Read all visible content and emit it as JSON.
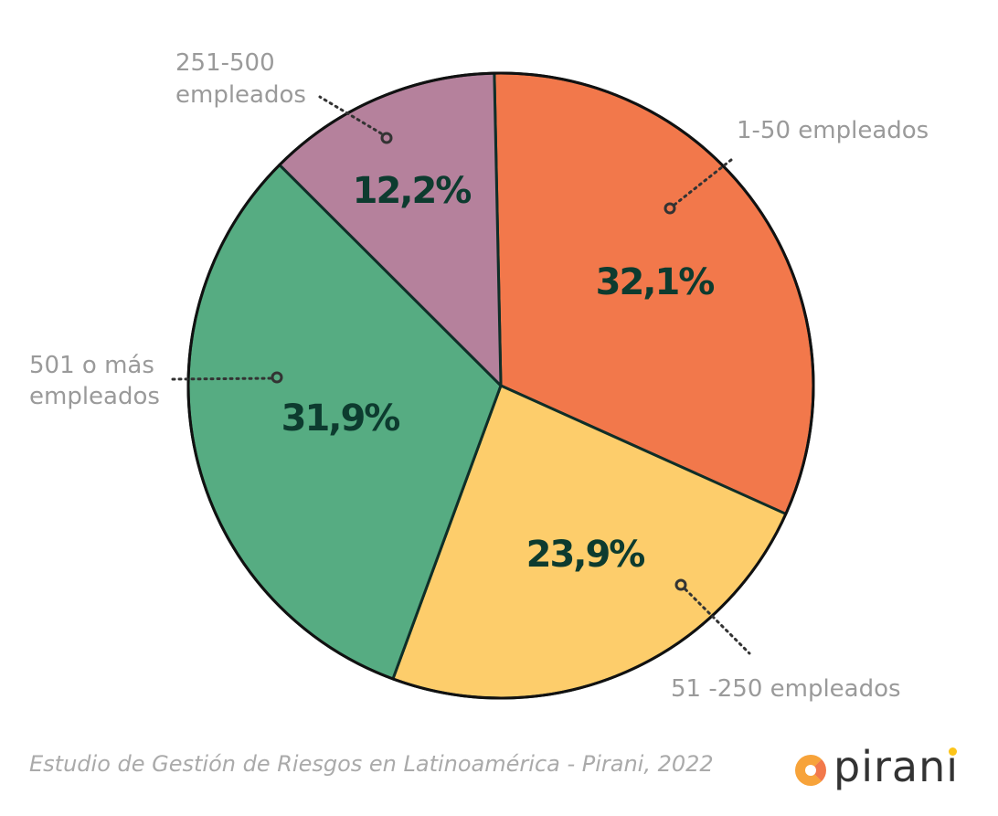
{
  "chart_data": {
    "type": "pie",
    "title": "",
    "slices": [
      {
        "label": "1-50 empleados",
        "value": 32.1,
        "display": "32,1%",
        "color": "#F2784B"
      },
      {
        "label": "51 -250 empleados",
        "value": 23.9,
        "display": "23,9%",
        "color": "#FDCD6B"
      },
      {
        "label": "501 o más empleados",
        "value": 31.9,
        "display": "31,9%",
        "color": "#56AC82"
      },
      {
        "label": "251-500 empleados",
        "value": 12.2,
        "display": "12,2%",
        "color": "#B5819C"
      }
    ],
    "outline_color": "#0F2E28"
  },
  "labels": {
    "l1": [
      "1-50 empleados"
    ],
    "l2": [
      "51 -250 empleados"
    ],
    "l3": [
      "501 o más",
      "empleados"
    ],
    "l4": [
      "251-500",
      "empleados"
    ]
  },
  "source": "Estudio de Gestión de Riesgos en Latinoamérica - Pirani, 2022",
  "logo": {
    "text": "pirani"
  }
}
